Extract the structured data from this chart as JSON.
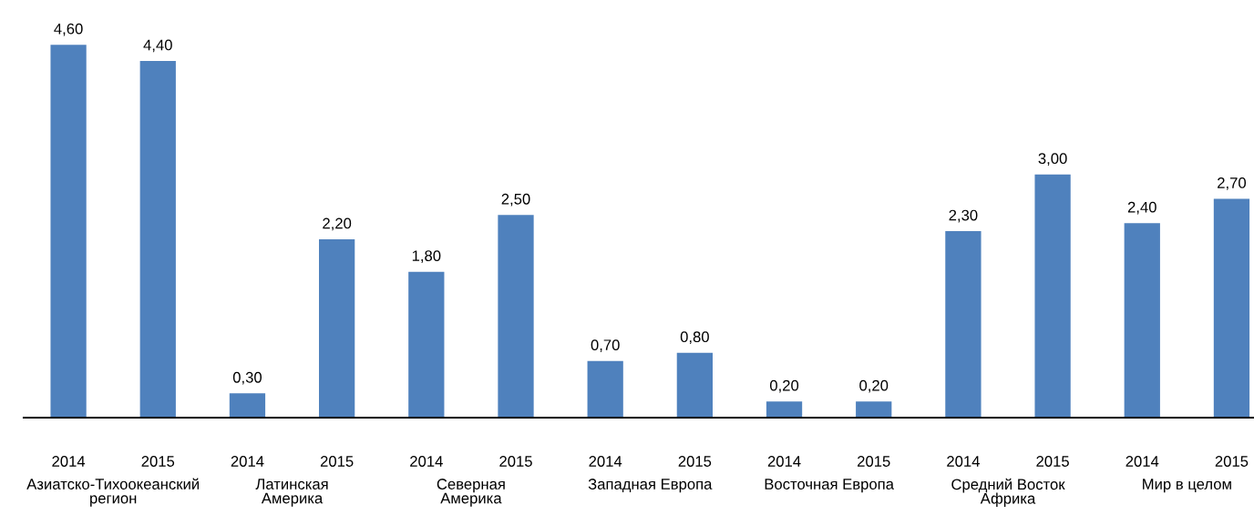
{
  "chart_data": {
    "type": "bar",
    "categories": [
      "2014",
      "2015",
      "2014",
      "2015",
      "2014",
      "2015",
      "2014",
      "2015",
      "2014",
      "2015",
      "2014",
      "2015",
      "2014",
      "2015"
    ],
    "values": [
      4.6,
      4.4,
      0.3,
      2.2,
      1.8,
      2.5,
      0.7,
      0.8,
      0.2,
      0.2,
      2.3,
      3.0,
      2.4,
      2.7
    ],
    "value_labels": [
      "4,60",
      "4,40",
      "0,30",
      "2,20",
      "1,80",
      "2,50",
      "0,70",
      "0,80",
      "0,20",
      "0,20",
      "2,30",
      "3,00",
      "2,40",
      "2,70"
    ],
    "color": "#4f81bd",
    "tick_labels": "x",
    "grid": false,
    "annotations": [
      "Азиатско-Тихоокеанский\nрегион",
      "Латинская\nАмерика",
      "Северная\nАмерика",
      "Западная Европа",
      "Восточная Европа",
      "Средний Восток\nАфрика",
      "Мир в целом"
    ]
  }
}
